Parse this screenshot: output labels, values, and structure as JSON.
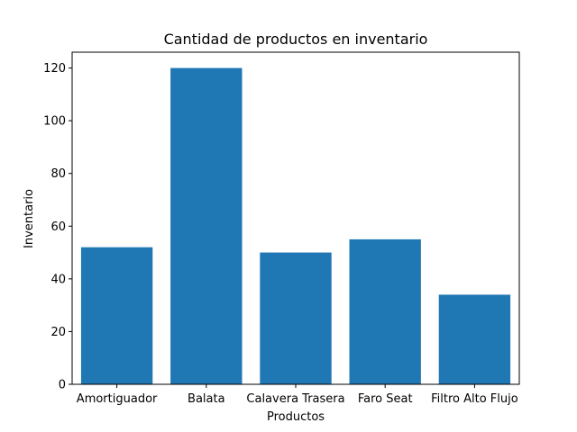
{
  "chart_data": {
    "type": "bar",
    "title": "Cantidad de productos en inventario",
    "xlabel": "Productos",
    "ylabel": "Inventario",
    "categories": [
      "Amortiguador",
      "Balata",
      "Calavera Trasera",
      "Faro Seat",
      "Filtro Alto Flujo"
    ],
    "values": [
      52,
      120,
      50,
      55,
      34
    ],
    "ylim": [
      0,
      126
    ],
    "yticks": [
      0,
      20,
      40,
      60,
      80,
      100,
      120
    ],
    "grid": false,
    "legend": "none",
    "bar_color": "#1f77b4"
  }
}
